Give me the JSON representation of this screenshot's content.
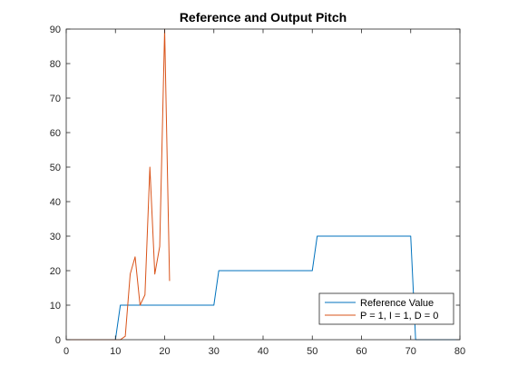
{
  "chart_data": {
    "type": "line",
    "title": "Reference and Output Pitch",
    "xlabel": "",
    "ylabel": "",
    "xlim": [
      0,
      80
    ],
    "ylim": [
      0,
      90
    ],
    "xticks": [
      0,
      10,
      20,
      30,
      40,
      50,
      60,
      70,
      80
    ],
    "yticks": [
      0,
      10,
      20,
      30,
      40,
      50,
      60,
      70,
      80,
      90
    ],
    "grid": false,
    "legend_position": "bottom-right",
    "series": [
      {
        "name": "Reference Value",
        "color": "#0072BD",
        "x": [
          0,
          10,
          11,
          30,
          31,
          50,
          51,
          70,
          71,
          80
        ],
        "y": [
          0,
          0,
          10,
          10,
          20,
          20,
          30,
          30,
          0,
          0
        ]
      },
      {
        "name": "P = 1, I = 1, D = 0",
        "color": "#D95319",
        "x": [
          0,
          10,
          11,
          12,
          13,
          14,
          15,
          16,
          17,
          18,
          19,
          20,
          21
        ],
        "y": [
          0,
          0,
          0,
          1,
          19,
          24,
          10,
          13,
          50,
          19,
          27,
          90,
          17
        ]
      }
    ]
  }
}
